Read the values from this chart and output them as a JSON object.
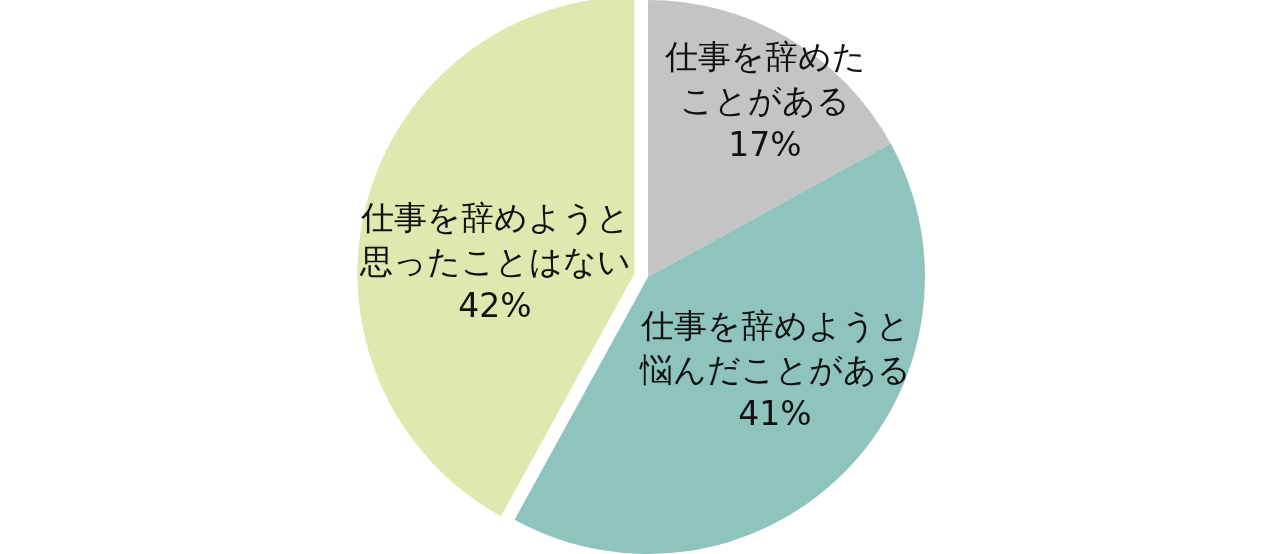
{
  "chart_data": {
    "type": "pie",
    "categories": [
      "仕事を辞めたことがある",
      "仕事を辞めようと悩んだことがある",
      "仕事を辞めようと思ったことはない"
    ],
    "values": [
      17,
      41,
      42
    ],
    "colors": [
      "#c4c4c4",
      "#8fc4bd",
      "#dfe8ae"
    ],
    "value_labels": [
      "17%",
      "41%",
      "42%"
    ]
  }
}
